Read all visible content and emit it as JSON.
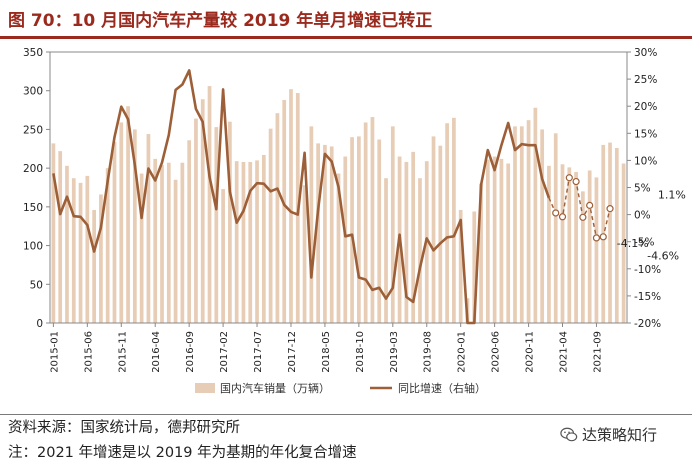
{
  "title": "图 70：10 月国内汽车产量较 2019 年单月增速已转正",
  "source": "资料来源：国家统计局，德邦研究所",
  "note": "注：2021 年增速是以 2019 年为基期的年化复合增速",
  "watermark": "达策略知行",
  "colors": {
    "title": "#9b2a1e",
    "bar": "#e8cdb6",
    "line": "#9c5f38",
    "dash_points": "#9c5f38"
  },
  "chart_data": {
    "type": "bar+line",
    "x_tick_labels": [
      "2015-01",
      "2015-06",
      "2015-11",
      "2016-04",
      "2016-09",
      "2017-02",
      "2017-07",
      "2017-12",
      "2018-05",
      "2018-10",
      "2019-03",
      "2019-08",
      "2020-01",
      "2020-06",
      "2020-11",
      "2021-04",
      "2021-09"
    ],
    "x_tick_every": 5,
    "x_start": "2015-01",
    "y_left": {
      "min": 0,
      "max": 350,
      "ticks": [
        0,
        50,
        100,
        150,
        200,
        250,
        300,
        350
      ]
    },
    "y_right": {
      "min": -20,
      "max": 30,
      "ticks": [
        "-20%",
        "-15%",
        "-10%",
        "-5%",
        "0%",
        "5%",
        "10%",
        "15%",
        "20%",
        "25%",
        "30%"
      ]
    },
    "legend_position": "bottom",
    "grid": "none",
    "series": [
      {
        "name": "国内汽车销量（万辆）",
        "type": "bar",
        "axis": "left",
        "values": [
          232,
          222,
          203,
          187,
          181,
          190,
          146,
          166,
          200,
          234,
          259,
          280,
          250,
          193,
          244,
          212,
          204,
          207,
          185,
          207,
          236,
          264,
          289,
          306,
          253,
          173,
          260,
          209,
          208,
          208,
          210,
          217,
          251,
          271,
          288,
          302,
          297,
          178,
          254,
          232,
          230,
          228,
          193,
          215,
          240,
          241,
          259,
          266,
          237,
          187,
          254,
          215,
          208,
          221,
          187,
          209,
          241,
          229,
          258,
          265,
          146,
          32,
          144,
          180,
          211,
          215,
          212,
          206,
          254,
          254,
          262,
          278,
          250,
          203,
          245,
          205,
          201,
          195,
          170,
          197,
          188,
          230,
          233,
          226,
          206
        ]
      },
      {
        "name": "同比增速（右轴）",
        "type": "line",
        "axis": "right",
        "values": [
          7.6,
          0.1,
          3.3,
          -0.3,
          -0.4,
          -1.9,
          -6.8,
          -2.4,
          6.2,
          14.3,
          19.9,
          17.6,
          9.1,
          -0.6,
          8.5,
          6.3,
          9.6,
          14.7,
          23.0,
          24.0,
          26.6,
          19.5,
          17.1,
          7.0,
          1.0,
          23.1,
          4.2,
          -1.5,
          0.7,
          4.4,
          5.8,
          5.7,
          4.3,
          4.8,
          1.8,
          0.5,
          0.0,
          11.4,
          -11.6,
          0.9,
          11.2,
          9.8,
          5.1,
          -4.0,
          -3.7,
          -11.6,
          -12.0,
          -13.9,
          -13.5,
          -15.5,
          -13.5,
          -3.7,
          -15.2,
          -16.1,
          -9.8,
          -4.4,
          -6.6,
          -5.3,
          -4.2,
          -4.0,
          -1.0,
          -45.0,
          -44.0,
          5.5,
          11.9,
          8.2,
          12.8,
          16.9,
          11.9,
          13.0,
          12.8,
          12.8,
          6.6,
          3.1
        ],
        "extension_values": [
          3.1,
          0.3,
          -0.4,
          6.8,
          6.1,
          -0.5,
          1.7,
          -4.3,
          -4.1,
          1.1
        ],
        "extension_style": "dashed with hollow markers"
      }
    ],
    "annotations": [
      {
        "text": "1.1%",
        "x_index": 92,
        "y": 1.1
      },
      {
        "text": "-4.1%",
        "x_index": 88,
        "y": -4.1
      },
      {
        "text": "-4.6%",
        "x_index": 91,
        "y": -4.6
      }
    ]
  }
}
